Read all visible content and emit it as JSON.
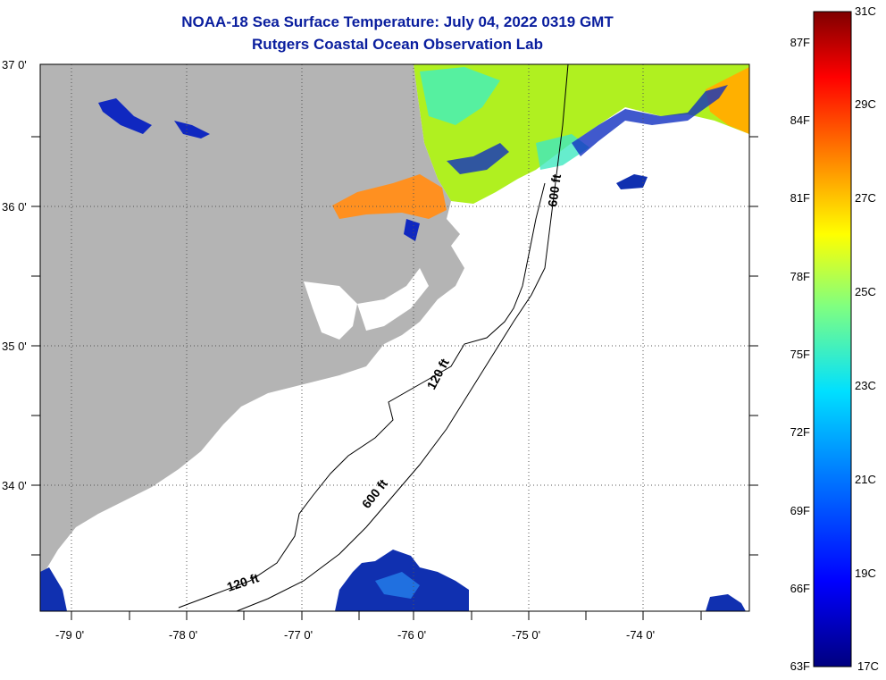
{
  "header": {
    "title": "NOAA-18 Sea Surface Temperature:  July 04, 2022 0319 GMT",
    "subtitle": "Rutgers Coastal Ocean Observation Lab"
  },
  "map": {
    "lat_ticks": [
      "37 0'",
      "36 0'",
      "35 0'",
      "34 0'"
    ],
    "lon_ticks": [
      "-79 0'",
      "-78 0'",
      "-77 0'",
      "-76 0'",
      "-75 0'",
      "-74 0'"
    ],
    "lat_values": [
      37,
      36,
      35,
      34
    ],
    "lon_values": [
      -79,
      -78,
      -77,
      -76,
      -75,
      -74
    ],
    "extent": {
      "lon_min": -79.3,
      "lon_max": -73.15,
      "lat_min": 33.1,
      "lat_max": 37.0
    },
    "contour_labels": [
      "120 ft",
      "600 ft",
      "120 ft",
      "600 ft"
    ]
  },
  "colorbar": {
    "celsius": [
      "31C",
      "29C",
      "27C",
      "25C",
      "23C",
      "21C",
      "19C",
      "17C"
    ],
    "fahrenheit": [
      "87F",
      "84F",
      "81F",
      "78F",
      "75F",
      "72F",
      "69F",
      "66F",
      "63F"
    ],
    "celsius_values": [
      31,
      29,
      27,
      25,
      23,
      21,
      19,
      17
    ],
    "fahrenheit_values": [
      87,
      84,
      81,
      78,
      75,
      72,
      69,
      66,
      63
    ],
    "colors": [
      "#00007f",
      "#0000ff",
      "#0080ff",
      "#00ffff",
      "#80ff80",
      "#ffff00",
      "#ff8000",
      "#ff0000",
      "#7f0000"
    ]
  },
  "colors": {
    "land": "#b4b4b4",
    "ocean": "#ffffff",
    "title": "#0a1e9e"
  }
}
